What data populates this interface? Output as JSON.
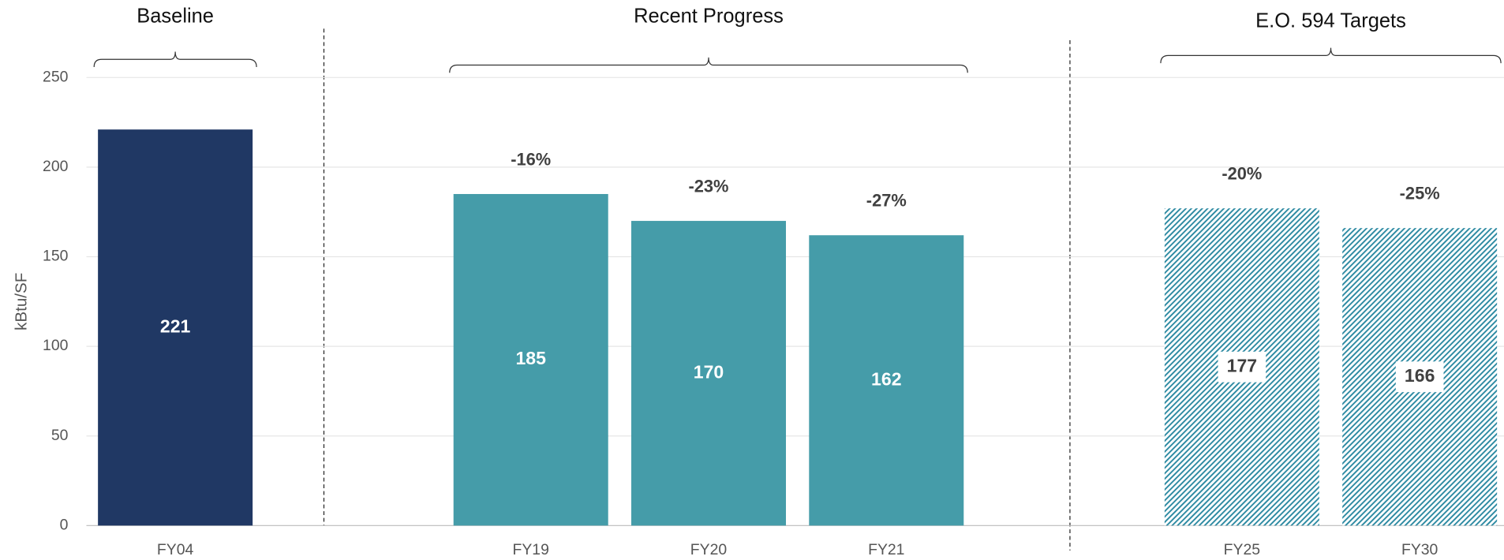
{
  "chart_data": {
    "type": "bar",
    "categories": [
      "FY04",
      null,
      "FY19",
      "FY20",
      "FY21",
      null,
      "FY25",
      "FY30"
    ],
    "values": [
      221,
      null,
      185,
      170,
      162,
      null,
      177,
      166
    ],
    "colors": [
      "#203864",
      null,
      "#459ca9",
      "#459ca9",
      "#459ca9",
      null,
      "#2f8ba3",
      "#2f8ba3"
    ],
    "hatched": [
      false,
      false,
      false,
      false,
      false,
      false,
      true,
      true
    ],
    "annotations": [
      null,
      null,
      "-16%",
      "-23%",
      "-27%",
      null,
      "-20%",
      "-25%"
    ],
    "groups": [
      {
        "label": "Baseline",
        "categories": [
          "FY04"
        ]
      },
      {
        "label": "Recent Progress",
        "categories": [
          "FY19",
          "FY20",
          "FY21"
        ]
      },
      {
        "label": "E.O. 594 Targets",
        "categories": [
          "FY25",
          "FY30"
        ]
      }
    ],
    "ylabel": "kBtu/SF",
    "ylim": [
      0,
      250
    ],
    "yticks": [
      0,
      50,
      100,
      150,
      200,
      250
    ],
    "grid": true
  }
}
